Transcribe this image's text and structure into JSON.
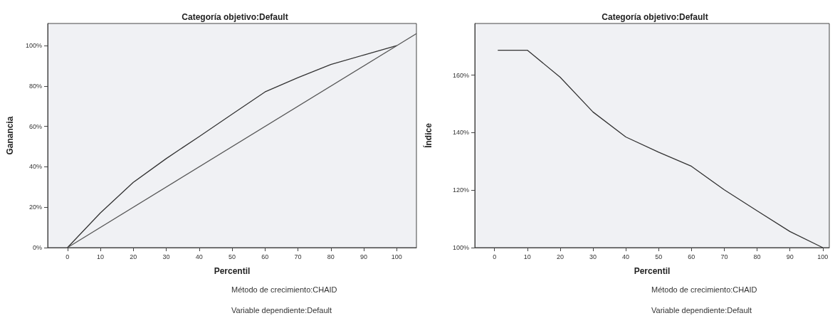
{
  "chart_data": [
    {
      "type": "line",
      "title": "Categoría objetivo:Default",
      "xlabel": "Percentil",
      "ylabel": "Ganancia",
      "marker": "none",
      "series": [
        {
          "color": "#333333",
          "x": [
            0,
            10,
            20,
            30,
            40,
            50,
            60,
            70,
            80,
            90,
            100
          ],
          "values": [
            0,
            17.2,
            32.3,
            44.1,
            55,
            66.1,
            77.1,
            84.2,
            90.7,
            95.4,
            100
          ]
        },
        {
          "color": "#555555",
          "x": [
            0,
            106
          ],
          "values": [
            0,
            106
          ]
        }
      ],
      "xlim": [
        -6,
        106
      ],
      "xticks": [
        0,
        10,
        20,
        30,
        40,
        50,
        60,
        70,
        80,
        90,
        100
      ],
      "ylim": [
        0,
        111
      ],
      "yticks": [
        {
          "value": 0,
          "label": "0%"
        },
        {
          "value": 20,
          "label": "20%"
        },
        {
          "value": 40,
          "label": "40%"
        },
        {
          "value": 60,
          "label": "60%"
        },
        {
          "value": 80,
          "label": "80%"
        },
        {
          "value": 100,
          "label": "100%"
        }
      ],
      "annotations": [
        "Método de crecimiento:CHAID",
        "Variable dependiente:Default"
      ]
    },
    {
      "type": "line",
      "title": "Categoría objetivo:Default",
      "xlabel": "Percentil",
      "ylabel": "Índice",
      "marker": "none",
      "series": [
        {
          "color": "#333333",
          "x": [
            1,
            10,
            20,
            30,
            40,
            50,
            60,
            70,
            80,
            90,
            100
          ],
          "values": [
            168.7,
            168.7,
            159.3,
            147.2,
            138.5,
            133.2,
            128.3,
            120.1,
            112.8,
            105.6,
            100
          ]
        }
      ],
      "xlim": [
        -6,
        102
      ],
      "xticks": [
        0,
        10,
        20,
        30,
        40,
        50,
        60,
        70,
        80,
        90,
        100
      ],
      "ylim": [
        100,
        178
      ],
      "yticks": [
        {
          "value": 100,
          "label": "100%"
        },
        {
          "value": 120,
          "label": "120%"
        },
        {
          "value": 140,
          "label": "140%"
        },
        {
          "value": 160,
          "label": "160%"
        }
      ],
      "annotations": [
        "Método de crecimiento:CHAID",
        "Variable dependiente:Default"
      ]
    }
  ]
}
